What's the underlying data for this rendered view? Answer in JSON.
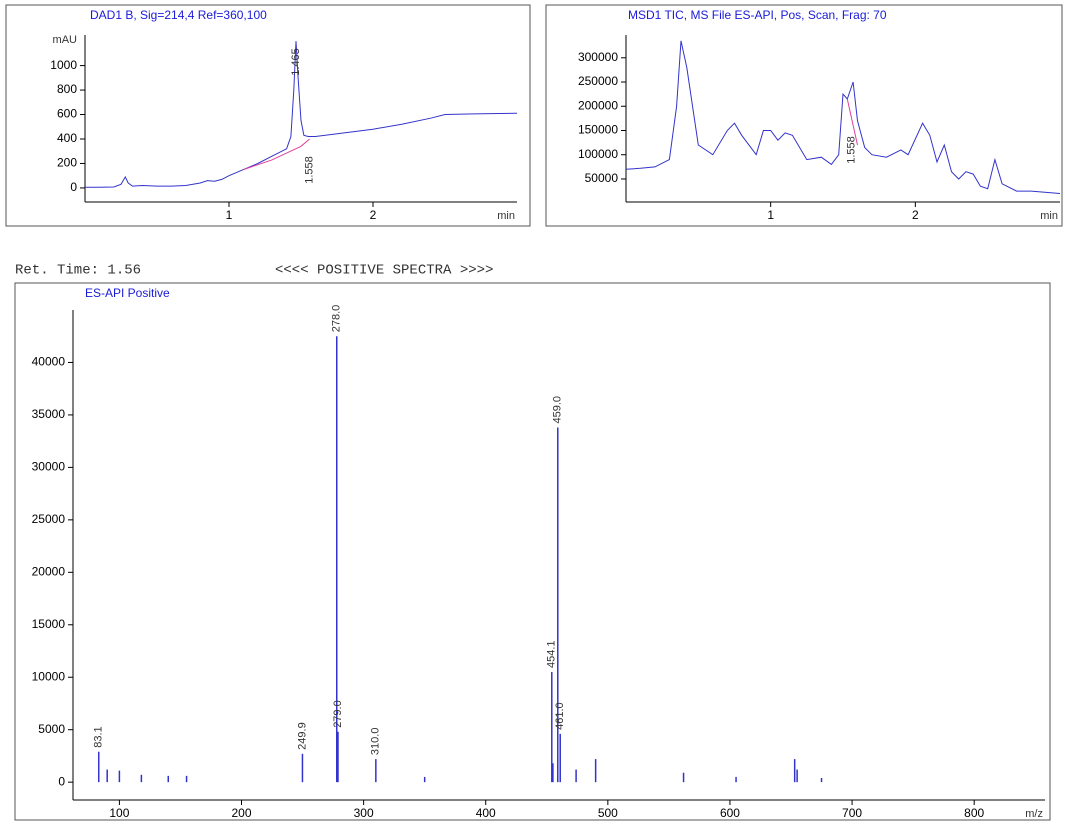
{
  "spectrum_header": {
    "left": "Ret. Time: 1.56",
    "center": "<<<< POSITIVE SPECTRA >>>>"
  },
  "chart_data": [
    {
      "type": "line",
      "title": "DAD1 B, Sig=214,4 Ref=360,100",
      "y_label": "mAU",
      "x_label": "min",
      "xlim": [
        0,
        3
      ],
      "xticks": [
        1,
        2
      ],
      "ylim": [
        -115,
        1250
      ],
      "yticks": [
        0,
        200,
        400,
        600,
        800,
        1000
      ],
      "series": [
        {
          "color": "#3333cc",
          "x": [
            0,
            0.1,
            0.2,
            0.25,
            0.28,
            0.3,
            0.33,
            0.4,
            0.5,
            0.6,
            0.7,
            0.8,
            0.85,
            0.9,
            0.95,
            1.0,
            1.1,
            1.2,
            1.3,
            1.4,
            1.43,
            1.45,
            1.465,
            1.48,
            1.5,
            1.52,
            1.55,
            1.6,
            1.8,
            2.0,
            2.2,
            2.4,
            2.5,
            2.7,
            3.0
          ],
          "values": [
            5,
            5,
            8,
            30,
            90,
            40,
            15,
            20,
            15,
            15,
            20,
            40,
            60,
            55,
            70,
            100,
            150,
            200,
            260,
            320,
            420,
            800,
            1200,
            900,
            550,
            430,
            420,
            420,
            450,
            480,
            520,
            570,
            600,
            605,
            610
          ]
        },
        {
          "color": "#e0409a",
          "x": [
            1.1,
            1.3,
            1.5,
            1.56
          ],
          "values": [
            150,
            230,
            340,
            400
          ]
        }
      ],
      "annotations": [
        {
          "text": "1.465",
          "x": 1.465
        },
        {
          "text": "1.558",
          "x": 1.558
        }
      ]
    },
    {
      "type": "line",
      "title": "MSD1 TIC, MS File     ES-API, Pos, Scan, Frag: 70",
      "x_label": "min",
      "xlim": [
        0,
        3
      ],
      "xticks": [
        1,
        2
      ],
      "ylim": [
        2500,
        347000
      ],
      "yticks": [
        50000,
        100000,
        150000,
        200000,
        250000,
        300000
      ],
      "series": [
        {
          "color": "#3333cc",
          "x": [
            0,
            0.1,
            0.2,
            0.3,
            0.35,
            0.38,
            0.42,
            0.5,
            0.6,
            0.7,
            0.75,
            0.8,
            0.9,
            0.95,
            1.0,
            1.05,
            1.1,
            1.15,
            1.25,
            1.35,
            1.42,
            1.47,
            1.5,
            1.53,
            1.57,
            1.6,
            1.65,
            1.7,
            1.8,
            1.9,
            1.95,
            2.05,
            2.1,
            2.15,
            2.2,
            2.25,
            2.3,
            2.35,
            2.4,
            2.45,
            2.5,
            2.55,
            2.6,
            2.7,
            2.8,
            3.0
          ],
          "values": [
            70000,
            72000,
            75000,
            90000,
            200000,
            335000,
            280000,
            120000,
            100000,
            150000,
            165000,
            140000,
            100000,
            150000,
            150000,
            130000,
            145000,
            140000,
            90000,
            95000,
            80000,
            100000,
            225000,
            215000,
            250000,
            170000,
            115000,
            100000,
            95000,
            110000,
            100000,
            165000,
            140000,
            85000,
            120000,
            65000,
            50000,
            65000,
            60000,
            35000,
            30000,
            90000,
            40000,
            25000,
            25000,
            20000
          ]
        },
        {
          "color": "#e0409a",
          "x": [
            1.53,
            1.6
          ],
          "values": [
            215000,
            120000
          ]
        }
      ],
      "annotations": [
        {
          "text": "1.558",
          "x": 1.558
        }
      ]
    },
    {
      "type": "bar",
      "title": "ES-API Positive",
      "x_label": "m/z",
      "color": "#3333cc",
      "xlim": [
        62,
        858
      ],
      "xticks": [
        100,
        200,
        300,
        400,
        500,
        600,
        700,
        800
      ],
      "ylim": [
        -1700,
        45000
      ],
      "yticks": [
        0,
        5000,
        10000,
        15000,
        20000,
        25000,
        30000,
        35000,
        40000
      ],
      "x": [
        83.1,
        90,
        100,
        118,
        140,
        155,
        249.9,
        278.0,
        279.0,
        310.0,
        350,
        454.1,
        455,
        459.0,
        461.0,
        474,
        490,
        562,
        605,
        653,
        655,
        675
      ],
      "values": [
        2900,
        1200,
        1100,
        700,
        600,
        600,
        2700,
        42500,
        4800,
        2200,
        500,
        10500,
        1800,
        33800,
        4600,
        1200,
        2200,
        900,
        500,
        2200,
        1200,
        400
      ],
      "x_labels": [
        "83.1",
        null,
        null,
        null,
        null,
        null,
        "249.9",
        "278.0",
        "279.0",
        "310.0",
        null,
        "454.1",
        null,
        "459.0",
        "461.0",
        null,
        null,
        null,
        null,
        null,
        null,
        null
      ]
    }
  ]
}
